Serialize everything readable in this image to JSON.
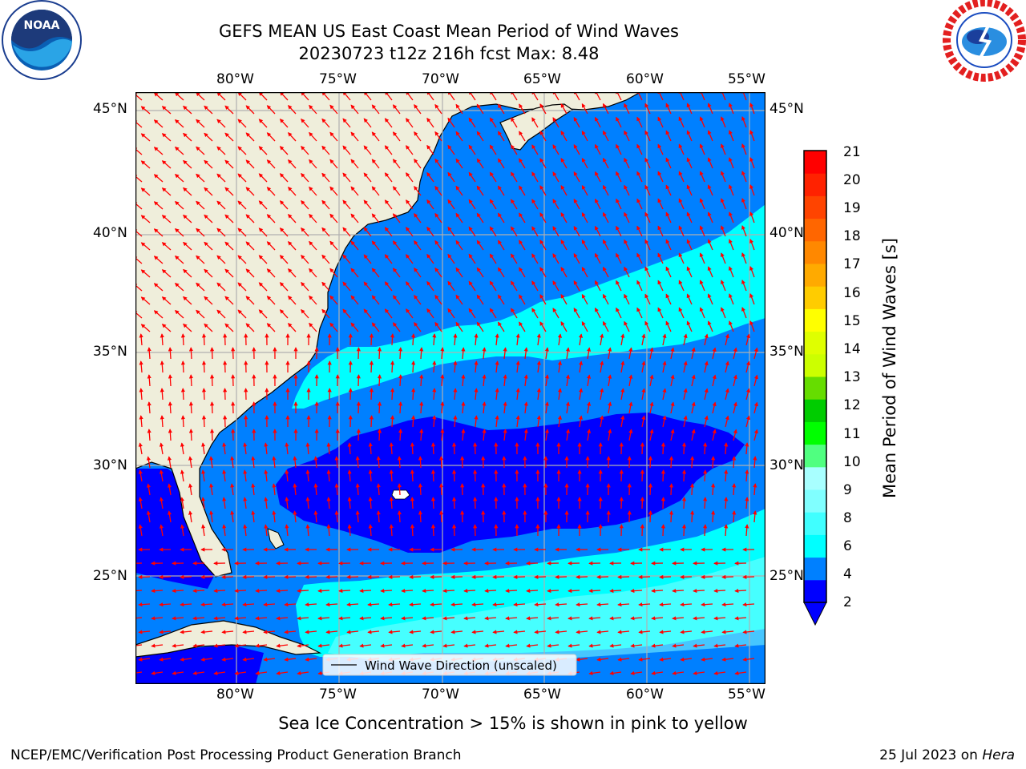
{
  "title": {
    "line1": "GEFS MEAN US East Coast Mean Period of Wind Waves",
    "line2": "20230723 t12z 216h fcst   Max: 8.48"
  },
  "logos": {
    "left": {
      "name": "noaa-logo",
      "text": "NOAA",
      "ring_text": "NATIONAL OCEANIC AND ATMOSPHERIC ADMINISTRATION · U.S. DEPARTMENT OF COMMERCE"
    },
    "right": {
      "name": "nws-logo",
      "ring_text": "NATIONAL WEATHER SERVICE"
    }
  },
  "map": {
    "lon_ticks": [
      "80°W",
      "75°W",
      "70°W",
      "65°W",
      "60°W",
      "55°W"
    ],
    "lat_ticks": [
      "45°N",
      "40°N",
      "35°N",
      "30°N",
      "25°N"
    ],
    "extent": {
      "lon": [
        -85,
        -54.2
      ],
      "lat": [
        20.5,
        45.8
      ]
    },
    "legend_label": "Wind Wave Direction (unscaled)",
    "land_color": "#efeedb",
    "arrow_color": "#ff0000",
    "grid_color": "#b0b0b0"
  },
  "colorbar": {
    "label": "Mean Period of Wind Waves [s]",
    "ticks": [
      "21",
      "20",
      "19",
      "18",
      "17",
      "16",
      "15",
      "14",
      "13",
      "12",
      "11",
      "10",
      "9",
      "8",
      "6",
      "4",
      "2"
    ],
    "colors_low_to_high": [
      "#0000ff",
      "#0080ff",
      "#00ffff",
      "#40ffff",
      "#80ffff",
      "#a8ffff",
      "#50ff80",
      "#00ff00",
      "#00cc00",
      "#66dd00",
      "#ccff00",
      "#dfff00",
      "#ffff00",
      "#ffcc00",
      "#ffaa00",
      "#ff8800",
      "#ff6600",
      "#ff4400",
      "#ff2200",
      "#ff0000"
    ]
  },
  "caption": "Sea Ice Concentration > 15% is shown in pink to yellow",
  "footer": {
    "left": "NCEP/EMC/Verification Post Processing Product Generation Branch",
    "right_date": "25 Jul 2023 on ",
    "right_host": "Hera"
  }
}
